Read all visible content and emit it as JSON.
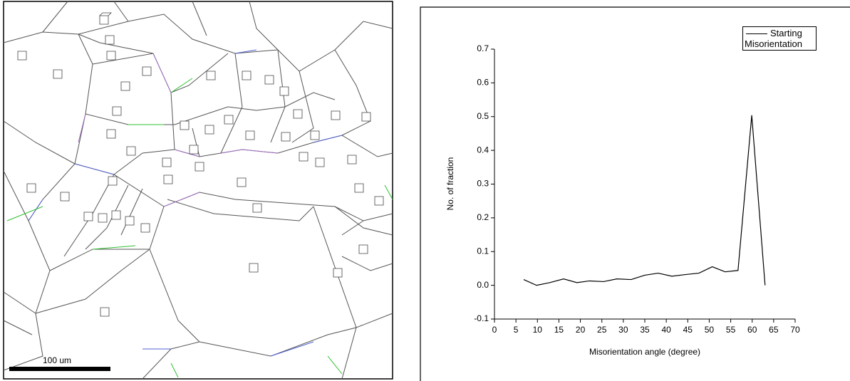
{
  "image": {
    "scale_bar_label": "100 um"
  },
  "chart_data": {
    "type": "line",
    "x_label": "Misorientation angle (degree)",
    "y_label": "No. of fraction",
    "legend": "upper right",
    "xlim": [
      0,
      70
    ],
    "xticks": [
      0,
      5,
      10,
      15,
      20,
      25,
      30,
      35,
      40,
      45,
      50,
      55,
      60,
      65,
      70
    ],
    "ylim": [
      -0.1,
      0.7
    ],
    "yticks": [
      -0.1,
      {
        "value": 0,
        "label": "0.0"
      },
      0.1,
      0.2,
      0.3,
      0.4,
      0.5,
      0.6,
      0.7
    ],
    "series": [
      {
        "name": "Starting Misorientation",
        "color": "#000000",
        "x": [
          6.8,
          9.8,
          12.9,
          16.1,
          19.2,
          22.1,
          25.4,
          28.5,
          31.8,
          35,
          38.1,
          41.3,
          44.6,
          47.6,
          50.7,
          53.7,
          56.7,
          59.9,
          63
        ],
        "values": [
          0.017,
          0.0,
          0.008,
          0.019,
          0.008,
          0.013,
          0.011,
          0.019,
          0.017,
          0.03,
          0.036,
          0.027,
          0.032,
          0.036,
          0.055,
          0.04,
          0.044,
          0.504,
          0.0
        ]
      }
    ]
  }
}
